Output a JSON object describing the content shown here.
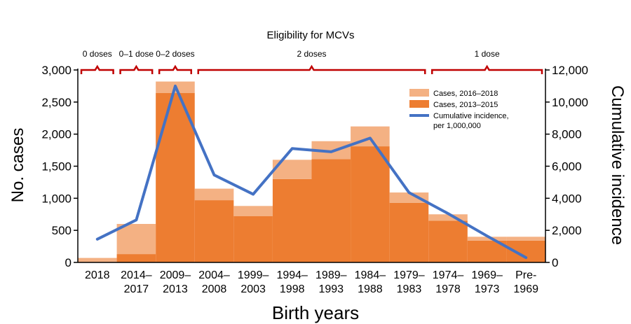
{
  "chart_data": {
    "type": "bar",
    "xlabel": "Birth years",
    "ylabel": "No. cases",
    "y2label": "Cumulative incidence",
    "ylim": [
      0,
      3000
    ],
    "y2lim": [
      0,
      12000
    ],
    "yticks": [
      "0",
      "500",
      "1,000",
      "1,500",
      "2,000",
      "2,500",
      "3,000"
    ],
    "y2ticks": [
      "0",
      "2,000",
      "4,000",
      "6,000",
      "8,000",
      "10,000",
      "12,000"
    ],
    "categories": [
      [
        "2018"
      ],
      [
        "2014–",
        "2017"
      ],
      [
        "2009–",
        "2013"
      ],
      [
        "2004–",
        "2008"
      ],
      [
        "1999–",
        "2003"
      ],
      [
        "1994–",
        "1998"
      ],
      [
        "1989–",
        "1993"
      ],
      [
        "1984–",
        "1988"
      ],
      [
        "1979–",
        "1983"
      ],
      [
        "1974–",
        "1978"
      ],
      [
        "1969–",
        "1973"
      ],
      [
        "Pre-",
        "1969"
      ]
    ],
    "series": [
      {
        "name": "Cases, 2013–2015",
        "type": "bar",
        "axis": "left",
        "color": "#ED7D31",
        "values": [
          0,
          130,
          2640,
          970,
          720,
          1300,
          1610,
          1810,
          930,
          650,
          340,
          340
        ]
      },
      {
        "name": "Cases, 2016–2018",
        "type": "bar-stacked",
        "axis": "left",
        "color": "#F4B183",
        "values": [
          70,
          470,
          180,
          180,
          160,
          300,
          280,
          310,
          160,
          100,
          60,
          60
        ]
      },
      {
        "name": "Cumulative incidence, per 1,000,000",
        "type": "line",
        "axis": "right",
        "color": "#4472C4",
        "values": [
          1450,
          2650,
          11000,
          5450,
          4250,
          7100,
          6900,
          7750,
          4350,
          3050,
          1650,
          300
        ]
      }
    ],
    "legend": {
      "position": "top-right",
      "items": [
        "Cases, 2016–2018",
        "Cases, 2013–2015",
        "Cumulative incidence,",
        "per 1,000,000"
      ]
    },
    "eligibility": {
      "title": "Eligibility for MCVs",
      "groups": [
        {
          "label": "0 doses",
          "from": 0,
          "to": 0
        },
        {
          "label": "0–1 dose",
          "from": 1,
          "to": 1
        },
        {
          "label": "0–2 doses",
          "from": 2,
          "to": 2
        },
        {
          "label": "2 doses",
          "from": 3,
          "to": 8
        },
        {
          "label": "1 dose",
          "from": 9,
          "to": 11
        }
      ],
      "color": "#C00000"
    }
  }
}
